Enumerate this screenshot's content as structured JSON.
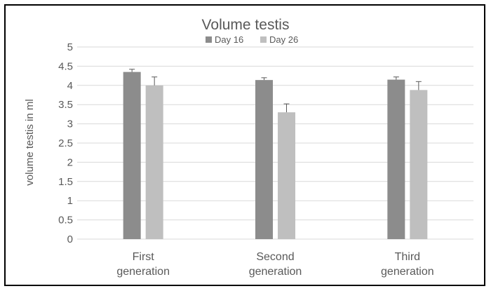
{
  "chart_data": {
    "type": "bar",
    "title": "Volume testis",
    "ylabel": "volume testis in ml",
    "xlabel": "",
    "categories": [
      [
        "First",
        "generation"
      ],
      [
        "Second",
        "generation"
      ],
      [
        "Third",
        "generation"
      ]
    ],
    "series": [
      {
        "name": "Day 16",
        "color": "#8c8c8c",
        "values": [
          4.35,
          4.14,
          4.15
        ],
        "errors": [
          0.07,
          0.06,
          0.07
        ]
      },
      {
        "name": "Day 26",
        "color": "#bfbfbf",
        "values": [
          4.0,
          3.3,
          3.88
        ],
        "errors": [
          0.22,
          0.22,
          0.22
        ]
      }
    ],
    "ylim": [
      0,
      5
    ],
    "yticks": [
      "0",
      "0.5",
      "1",
      "1.5",
      "2",
      "2.5",
      "3",
      "3.5",
      "4",
      "4.5",
      "5"
    ],
    "grid": true,
    "legend": "top"
  }
}
